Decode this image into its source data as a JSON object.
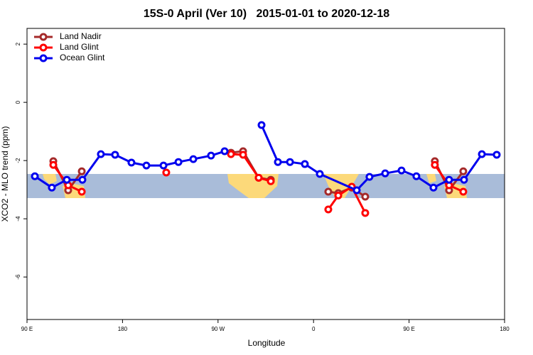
{
  "chart_data": {
    "type": "line",
    "title": "15S-0 April (Ver 10)   2015-01-01 to 2020-12-18",
    "x_label": "Longitude",
    "y_label": "XCO2 - MLO trend (ppm)",
    "xlim": [
      90,
      540
    ],
    "xticks": [
      {
        "value": 90,
        "label": "90 E"
      },
      180,
      {
        "value": 270,
        "label": "90 W"
      },
      {
        "value": 360,
        "label": "0"
      },
      {
        "value": 450,
        "label": "90 E"
      },
      {
        "value": 540,
        "label": "180"
      }
    ],
    "ylim": [
      -7.46,
      2.54
    ],
    "yticks": [
      2,
      0,
      -2,
      -4,
      -6
    ],
    "legend": "top-left",
    "series": [
      {
        "name": "Land Nadir",
        "color": "#a52a2a",
        "x": [
          114.8,
          128.8,
          141.6,
          null,
          282.2,
          293.6,
          308.3,
          319.7,
          null,
          373.9,
          383.3,
          396,
          408.7,
          null,
          474.3,
          487.7,
          501.1
        ],
        "values": [
          -2.02,
          -3.02,
          -2.37,
          null,
          -1.73,
          -1.68,
          -2.59,
          -2.66,
          null,
          -3.07,
          -3.12,
          -2.93,
          -3.24,
          null,
          -2.02,
          -3.02,
          -2.37
        ]
      },
      {
        "name": "Land Glint",
        "color": "#ff0000",
        "x": [
          114.8,
          128.8,
          141.6,
          null,
          221.2,
          null,
          282.2,
          293.6,
          308.3,
          319.7,
          null,
          373.9,
          383.3,
          396,
          408.7,
          null,
          474.3,
          487.7,
          501.1
        ],
        "values": [
          -2.15,
          -2.85,
          -3.07,
          null,
          -2.41,
          null,
          -1.78,
          -1.8,
          -2.59,
          -2.71,
          null,
          -3.68,
          -3.2,
          -2.9,
          -3.8,
          null,
          -2.15,
          -2.85,
          -3.07
        ]
      },
      {
        "name": "Ocean Glint",
        "color": "#0000ee",
        "x": [
          97.4,
          113.4,
          127.5,
          142.2,
          159.6,
          173,
          188.4,
          202.5,
          218.6,
          232.7,
          246.7,
          263.4,
          276.2,
          null,
          311,
          326.4,
          337.8,
          351.8,
          365.9,
          400.7,
          412.7,
          427.5,
          442.9,
          456.9,
          473,
          487.7,
          501.8,
          518.6,
          532.6
        ],
        "values": [
          -2.54,
          -2.93,
          -2.66,
          -2.66,
          -1.78,
          -1.8,
          -2.07,
          -2.17,
          -2.17,
          -2.05,
          -1.95,
          -1.83,
          -1.68,
          null,
          -0.78,
          -2.05,
          -2.05,
          -2.12,
          -2.46,
          -3.02,
          -2.56,
          -2.44,
          -2.34,
          -2.54,
          -2.93,
          -2.66,
          -2.66,
          -1.78,
          -1.8
        ]
      }
    ]
  }
}
